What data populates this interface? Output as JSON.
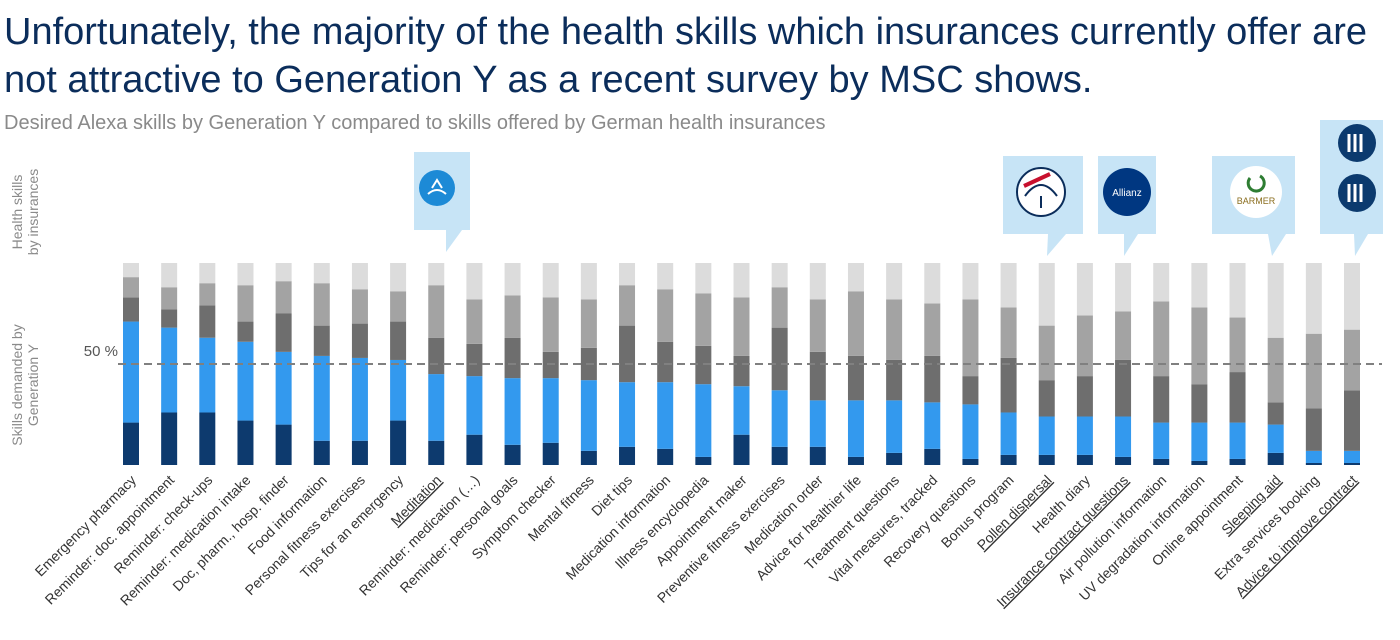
{
  "chart_data": {
    "type": "stacked_bar",
    "title": [
      "Unfortunately, the majority of the health skills which insurances currently offer are",
      "not attractive to Generation Y as a recent survey by MSC shows."
    ],
    "subtitle": "Desired Alexa skills by Generation Y compared to skills offered by German health insurances",
    "y_axis_labels": {
      "top": [
        "Health skills",
        "by insurances"
      ],
      "bottom": [
        "Skills demanded by",
        "Generation Y"
      ]
    },
    "categories": [
      "Emergency pharmacy",
      "Reminder: doc. appointment",
      "Reminder: check-ups",
      "Reminder: medication intake",
      "Doc, pharm., hosp. finder",
      "Food information",
      "Personal fitness exercises",
      "Tips for an emergency",
      "Meditation",
      "Reminder: medication (…)",
      "Reminder: personal goals",
      "Symptom checker",
      "Mental fitness",
      "Diet tips",
      "Medication information",
      "Illness encyclopedia",
      "Appointment maker",
      "Preventive fitness exercises",
      "Medication order",
      "Advice for healthier life",
      "Treatment questions",
      "Vital measures, tracked",
      "Recovery questions",
      "Bonus program",
      "Pollen dispersal",
      "Health diary",
      "Insurance contract questions",
      "Air pollution information",
      "UV degradation information",
      "Online appointment",
      "Sleeping aid",
      "Extra services booking",
      "Advice to improve contract"
    ],
    "underlined_categories": [
      8,
      24,
      26,
      30,
      32
    ],
    "series": [
      {
        "color": "#0d3a6e",
        "values": [
          21,
          26,
          26,
          22,
          20,
          12,
          12,
          22,
          12,
          15,
          10,
          11,
          7,
          9,
          8,
          4,
          15,
          9,
          9,
          4,
          6,
          8,
          3,
          5,
          5,
          5,
          4,
          3,
          2,
          3,
          6,
          1,
          1
        ]
      },
      {
        "color": "#3399ee",
        "values": [
          50,
          42,
          37,
          39,
          36,
          42,
          41,
          30,
          33,
          29,
          33,
          32,
          35,
          32,
          33,
          36,
          24,
          28,
          23,
          28,
          26,
          23,
          27,
          21,
          19,
          19,
          20,
          18,
          19,
          18,
          14,
          6,
          6
        ]
      },
      {
        "color": "#6e6e6e",
        "values": [
          12,
          9,
          16,
          10,
          19,
          15,
          17,
          19,
          18,
          16,
          20,
          13,
          16,
          28,
          20,
          19,
          15,
          31,
          24,
          22,
          20,
          23,
          14,
          27,
          18,
          20,
          28,
          23,
          19,
          25,
          11,
          21,
          30
        ]
      },
      {
        "color": "#a3a3a3",
        "values": [
          10,
          11,
          11,
          18,
          16,
          21,
          17,
          15,
          26,
          22,
          21,
          27,
          24,
          20,
          26,
          26,
          29,
          20,
          26,
          32,
          30,
          26,
          38,
          25,
          27,
          30,
          24,
          37,
          38,
          27,
          32,
          37,
          30
        ]
      },
      {
        "color": "#dcdcdc",
        "values": [
          7,
          12,
          10,
          11,
          9,
          10,
          13,
          14,
          11,
          18,
          16,
          17,
          18,
          11,
          13,
          15,
          17,
          12,
          18,
          14,
          18,
          20,
          18,
          22,
          31,
          26,
          24,
          19,
          22,
          27,
          37,
          35,
          33
        ]
      }
    ],
    "ylim": [
      0,
      100
    ],
    "yticks": [
      {
        "value": 50,
        "label": "50 %"
      }
    ],
    "reference_line": 50,
    "logos": {
      "allianz": "Allianz",
      "barmer": "BARMER"
    }
  }
}
